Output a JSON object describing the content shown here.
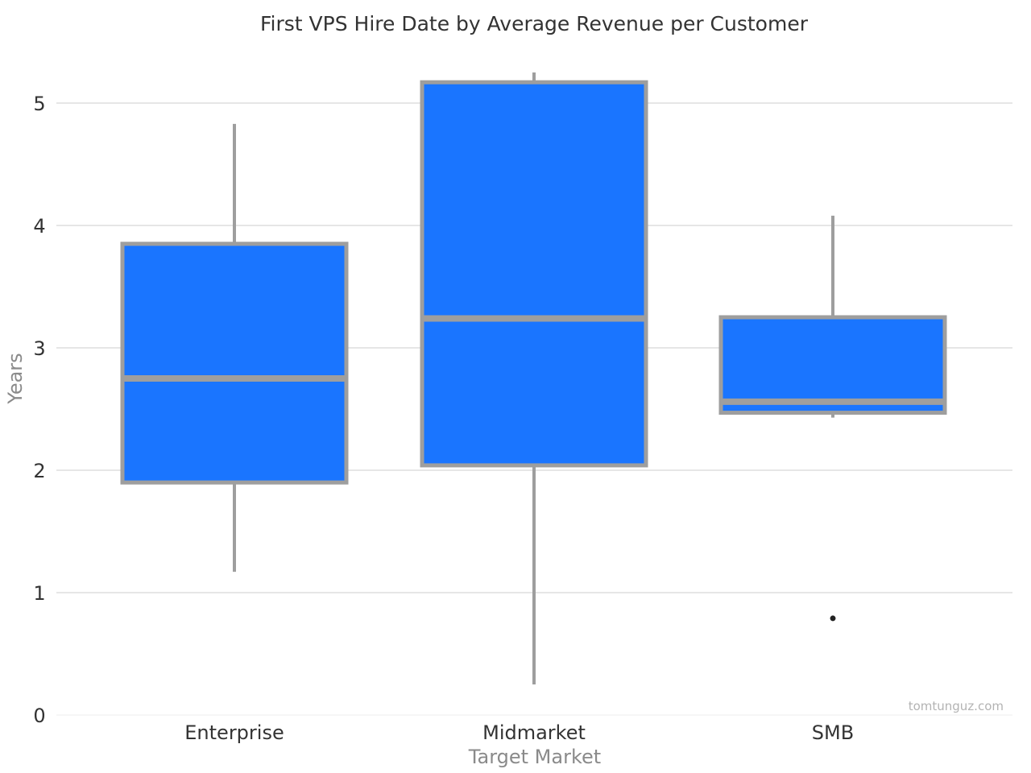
{
  "chart_data": {
    "type": "box",
    "title": "First VPS Hire Date by Average Revenue per Customer",
    "xlabel": "Target Market",
    "ylabel": "Years",
    "ylim": [
      0,
      5.5
    ],
    "yticks": [
      0,
      1,
      2,
      3,
      4,
      5
    ],
    "grid": true,
    "categories": [
      "Enterprise",
      "Midmarket",
      "SMB"
    ],
    "boxes": [
      {
        "category": "Enterprise",
        "whisker_low": 1.17,
        "q1": 1.9,
        "median": 2.75,
        "q3": 3.85,
        "whisker_high": 4.83,
        "outliers": []
      },
      {
        "category": "Midmarket",
        "whisker_low": 0.25,
        "q1": 2.04,
        "median": 3.24,
        "q3": 5.17,
        "whisker_high": 5.25,
        "outliers": []
      },
      {
        "category": "SMB",
        "whisker_low": 2.43,
        "q1": 2.47,
        "median": 2.56,
        "q3": 3.25,
        "whisker_high": 4.08,
        "outliers": [
          0.79
        ]
      }
    ],
    "colors": {
      "box_fill": "#1a75ff",
      "box_stroke": "#9e9e9e",
      "outlier": "#222222"
    }
  },
  "watermark": "tomtunguz.com"
}
